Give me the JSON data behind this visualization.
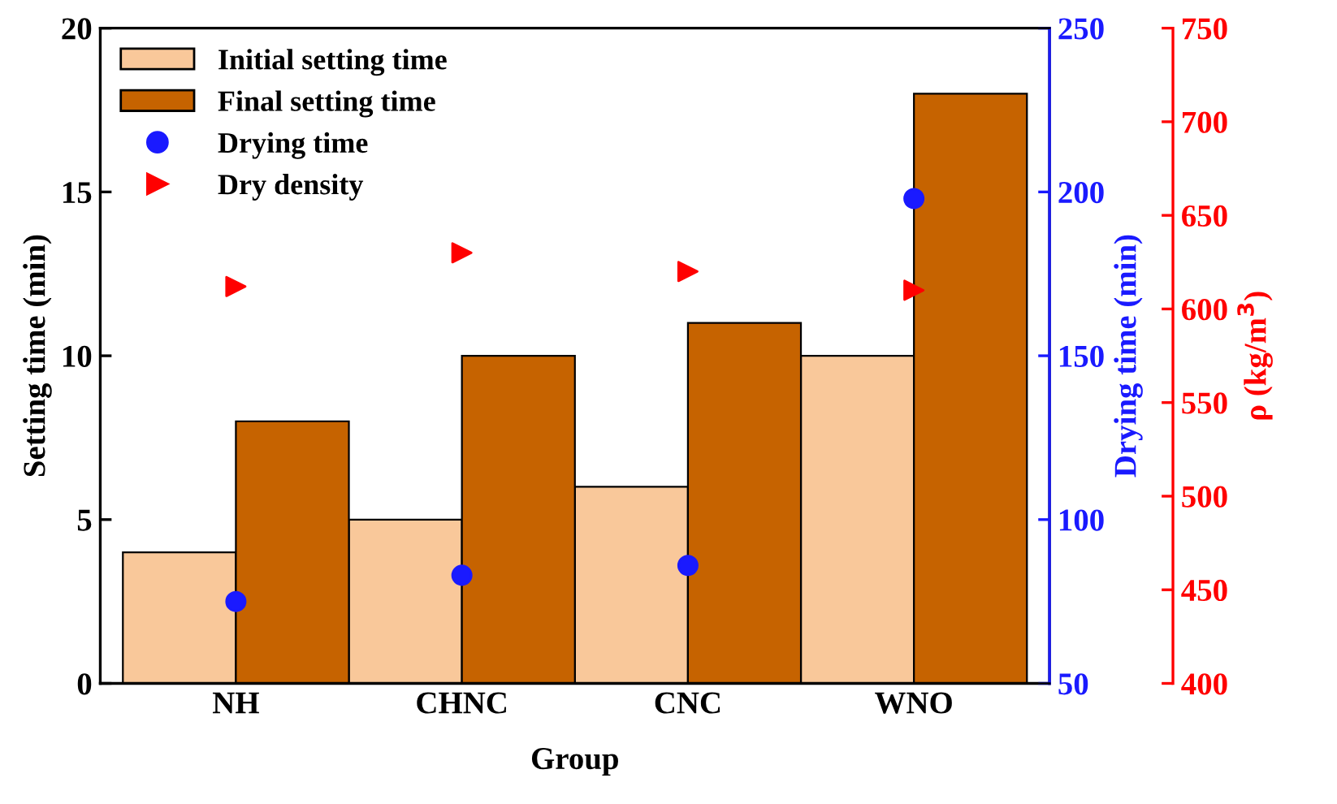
{
  "chart_data": {
    "type": "bar",
    "xlabel": "Group",
    "ylabel": "Setting time (min)",
    "y2label": "Drying time (min)",
    "y3label": "ρ (kg/m$^{3}$)",
    "categories": [
      "NH",
      "CHNC",
      "CNC",
      "WNO"
    ],
    "series": [
      {
        "name": "Initial setting time",
        "color": "#f9c89a",
        "values": [
          4,
          5,
          6,
          10
        ]
      },
      {
        "name": "Final setting time",
        "color": "#c66300",
        "values": [
          8,
          10,
          11,
          18
        ]
      },
      {
        "name": "Drying time",
        "type": "scatter",
        "axis": "y2",
        "marker": "circle",
        "color": "#1a1aff",
        "values": [
          75,
          83,
          86,
          198
        ]
      },
      {
        "name": "Dry density",
        "type": "scatter",
        "axis": "y3",
        "marker": "triangle",
        "color": "#ff0000",
        "values": [
          612,
          630,
          620,
          610
        ]
      }
    ],
    "ylim": [
      0,
      20
    ],
    "yticks": [
      0,
      5,
      10,
      15,
      20
    ],
    "y2lim": [
      50,
      250
    ],
    "y2ticks": [
      50,
      100,
      150,
      200,
      250
    ],
    "y3lim": [
      400,
      750
    ],
    "y3ticks": [
      400,
      450,
      500,
      550,
      600,
      650,
      700,
      750
    ],
    "legend": "top left",
    "grid": false
  }
}
